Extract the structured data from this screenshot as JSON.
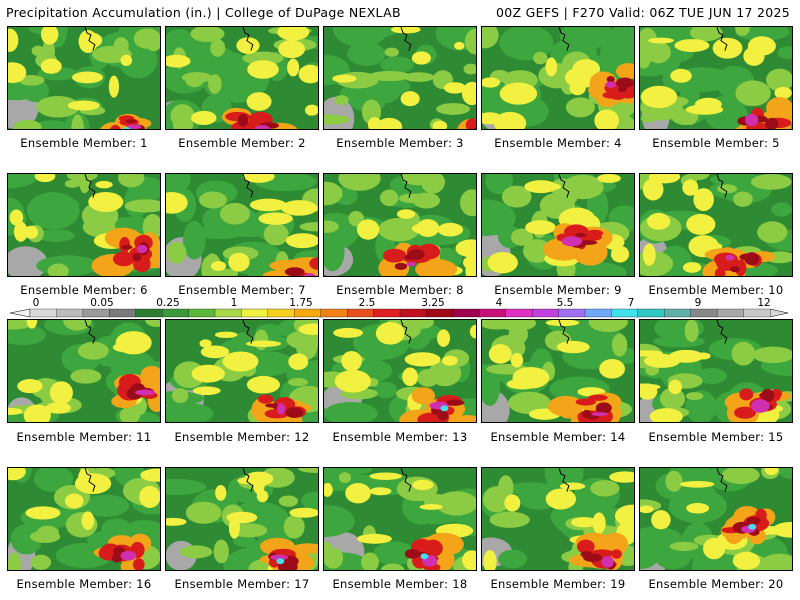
{
  "header": {
    "left": "Precipitation Accumulation (in.) | College of DuPage NEXLAB",
    "right": "00Z GEFS | F270 Valid: 06Z TUE JUN 17 2025"
  },
  "members": [
    "Ensemble Member: 1",
    "Ensemble Member: 2",
    "Ensemble Member: 3",
    "Ensemble Member: 4",
    "Ensemble Member: 5",
    "Ensemble Member: 6",
    "Ensemble Member: 7",
    "Ensemble Member: 8",
    "Ensemble Member: 9",
    "Ensemble Member: 10",
    "Ensemble Member: 11",
    "Ensemble Member: 12",
    "Ensemble Member: 13",
    "Ensemble Member: 14",
    "Ensemble Member: 15",
    "Ensemble Member: 16",
    "Ensemble Member: 17",
    "Ensemble Member: 18",
    "Ensemble Member: 19",
    "Ensemble Member: 20"
  ],
  "colorbar": {
    "labels": [
      "0",
      "0.05",
      "0.25",
      "1",
      "1.75",
      "2.5",
      "3.25",
      "4",
      "5.5",
      "7",
      "9",
      "12"
    ],
    "colors": [
      "#d8d8d8",
      "#bcbcbc",
      "#9a9a9a",
      "#7a7a7a",
      "#2e7d32",
      "#3c9a3c",
      "#5cb83a",
      "#a8d84a",
      "#f0f040",
      "#f5d020",
      "#f5a810",
      "#f08018",
      "#e85020",
      "#e02020",
      "#c01020",
      "#a00818",
      "#a00050",
      "#c8107a",
      "#e030c0",
      "#c040e0",
      "#a070f0",
      "#70a8f8",
      "#40e0f0",
      "#30c8c0",
      "#60b0a8",
      "#888888",
      "#a8a8a8",
      "#c8c8c8"
    ]
  },
  "map_colors": {
    "green_dark": "#2f8a34",
    "green": "#3ea63e",
    "green_light": "#8ccc44",
    "yellow": "#f2f040",
    "orange": "#f4a418",
    "red": "#d81c1c",
    "dark_red": "#9c0c18",
    "magenta": "#d030b0",
    "cyan": "#40e0f0",
    "gray": "#a8a8a8",
    "coast": "#000000"
  }
}
